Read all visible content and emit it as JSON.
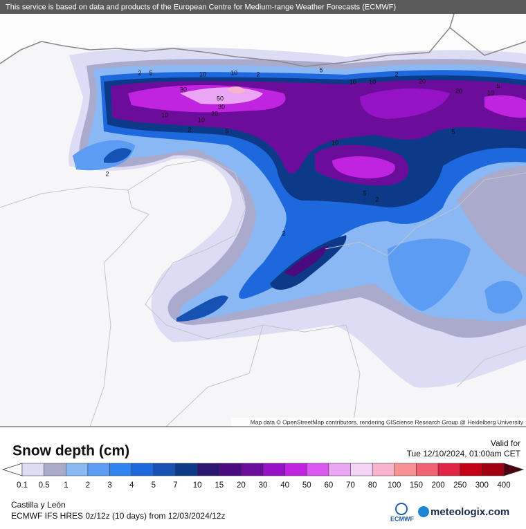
{
  "banner": "This service is based on data and products of the European Centre for Medium-range Weather Forecasts (ECMWF)",
  "attribution": "Map data © OpenStreetMap contributors, rendering GIScience Research Group @ Heidelberg University",
  "contour_labels": [
    2,
    5,
    10,
    10,
    2,
    30,
    50,
    30,
    20,
    10,
    10,
    2,
    5,
    5,
    10,
    10,
    2,
    20,
    20,
    10,
    5,
    10,
    5,
    2,
    2,
    2,
    5
  ],
  "legend": {
    "title": "Snow depth (cm)",
    "ticks": [
      0.1,
      0.5,
      1,
      2,
      3,
      4,
      5,
      7,
      10,
      15,
      20,
      30,
      40,
      50,
      60,
      70,
      80,
      100,
      150,
      200,
      250,
      300,
      400
    ],
    "colors": [
      "#dcdcf4",
      "#aaaacc",
      "#8ab8f4",
      "#5c9cf2",
      "#2f84f0",
      "#1c68dc",
      "#1652b4",
      "#0d3a88",
      "#2c1670",
      "#4a0a80",
      "#6c0c9a",
      "#9612c6",
      "#c024e0",
      "#da58f0",
      "#eaa6f4",
      "#f4d4f6",
      "#f8b4cc",
      "#f89292",
      "#f06472",
      "#e02446",
      "#c20016",
      "#a00012"
    ],
    "under_color": "#ffffff",
    "over_color": "#4c0010"
  },
  "valid_label": "Valid for",
  "valid_time": "Tue 12/10/2024, 01:00am CET",
  "region": "Castilla y León",
  "model": "ECMWF IFS HRES 0z/12z (10 days) from 12/03/2024/12z",
  "ecmwf_logo": "ECMWF",
  "brand": "meteologix.com"
}
